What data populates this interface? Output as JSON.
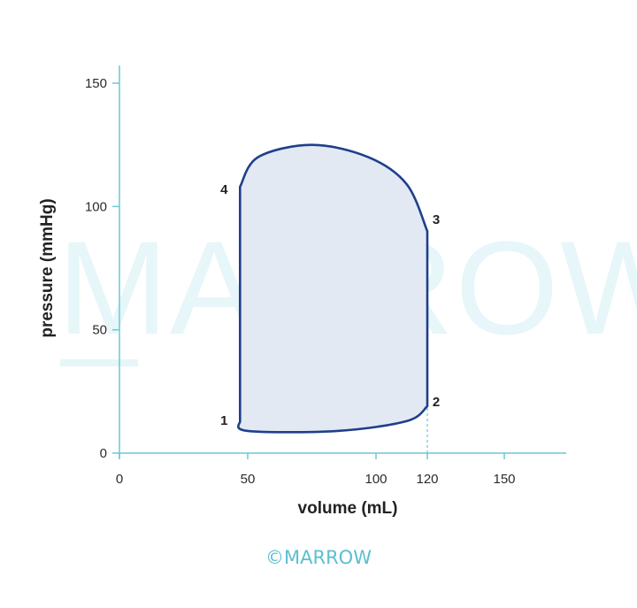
{
  "colors": {
    "axis": "#6cc8d4",
    "loop_stroke": "#1f3f8c",
    "loop_fill": "#e2e9f3",
    "watermark": "#e6f6f9",
    "credit": "#5bbfd0",
    "text": "#222222"
  },
  "watermark_text": "MARROW",
  "credit_text": "©MARROW",
  "chart_data": {
    "type": "line",
    "title": "",
    "xlabel": "volume (mL)",
    "ylabel": "pressure (mmHg)",
    "xlim": [
      0,
      180
    ],
    "ylim": [
      0,
      157
    ],
    "xticks": [
      0,
      50,
      100,
      120,
      150
    ],
    "yticks": [
      0,
      50,
      100,
      150
    ],
    "grid": false,
    "legend": "none",
    "series": [
      {
        "closed": true,
        "points": [
          {
            "x": 47,
            "y": 13
          },
          {
            "x": 50,
            "y": 9
          },
          {
            "x": 85,
            "y": 9
          },
          {
            "x": 112,
            "y": 13
          },
          {
            "x": 120,
            "y": 19
          },
          {
            "x": 120,
            "y": 90
          },
          {
            "x": 112,
            "y": 109
          },
          {
            "x": 97,
            "y": 120
          },
          {
            "x": 75,
            "y": 125
          },
          {
            "x": 54,
            "y": 120
          },
          {
            "x": 47,
            "y": 108
          },
          {
            "x": 47,
            "y": 13
          }
        ]
      }
    ],
    "point_labels": [
      {
        "text": "1",
        "x": 47,
        "y": 13
      },
      {
        "text": "2",
        "x": 120,
        "y": 19
      },
      {
        "text": "3",
        "x": 120,
        "y": 90
      },
      {
        "text": "4",
        "x": 47,
        "y": 108
      }
    ],
    "reference_lines": [
      {
        "style": "dashed",
        "x": 120,
        "y_from": 0,
        "y_to": 19
      }
    ]
  }
}
